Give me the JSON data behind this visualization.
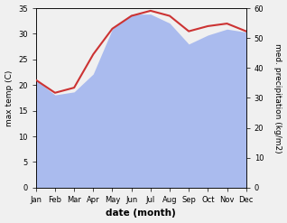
{
  "months": [
    "Jan",
    "Feb",
    "Mar",
    "Apr",
    "May",
    "Jun",
    "Jul",
    "Aug",
    "Sep",
    "Oct",
    "Nov",
    "Dec"
  ],
  "temp": [
    21.0,
    18.5,
    19.5,
    26.0,
    31.0,
    33.5,
    34.5,
    33.5,
    30.5,
    31.5,
    32.0,
    30.5
  ],
  "precip": [
    36,
    31,
    32,
    38,
    53,
    58,
    58,
    55,
    48,
    51,
    53,
    52
  ],
  "temp_color": "#cc3333",
  "precip_color": "#aabbee",
  "left_ylim": [
    0,
    35
  ],
  "right_ylim": [
    0,
    60
  ],
  "left_yticks": [
    0,
    5,
    10,
    15,
    20,
    25,
    30,
    35
  ],
  "right_yticks": [
    0,
    10,
    20,
    30,
    40,
    50,
    60
  ],
  "ylabel_left": "max temp (C)",
  "ylabel_right": "med. precipitation (kg/m2)",
  "xlabel": "date (month)",
  "bg_color": "#f0f0f0"
}
